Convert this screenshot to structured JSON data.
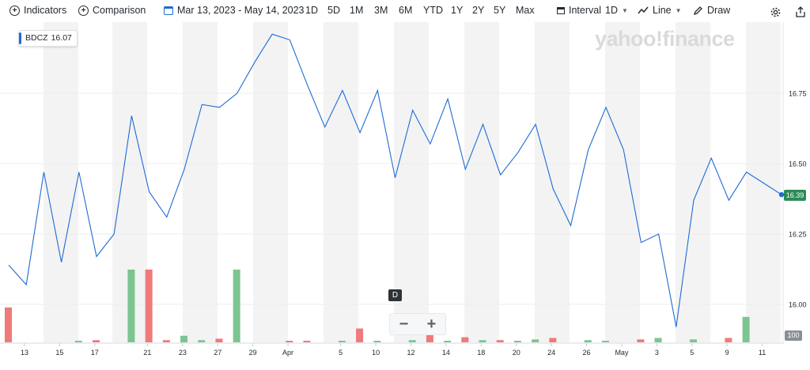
{
  "toolbar": {
    "indicators": "Indicators",
    "comparison": "Comparison",
    "date_range": "Mar 13, 2023 - May 14, 2023",
    "ranges": [
      "1D",
      "5D",
      "1M",
      "3M",
      "6M",
      "YTD",
      "1Y",
      "2Y",
      "5Y",
      "Max"
    ],
    "interval_label": "Interval",
    "interval_value": "1D",
    "line_label": "Line",
    "draw_label": "Draw"
  },
  "ticker": {
    "symbol": "BDCZ",
    "value": "16.07"
  },
  "watermark": "yahoo!finance",
  "current_price_tag": "16.39",
  "volume_tag": "100",
  "period_badge": "D",
  "zoom": {
    "minus": "−",
    "plus": "+"
  },
  "colors": {
    "line": "#1e6bd6",
    "up_volume": "#7cc490",
    "down_volume": "#ef7a7a",
    "band": "#f3f3f3",
    "price_tag": "#2e8b57"
  },
  "chart_data": {
    "type": "line",
    "x_tick_labels": [
      "13",
      "15",
      "17",
      "21",
      "23",
      "27",
      "29",
      "Apr",
      "5",
      "10",
      "12",
      "14",
      "18",
      "20",
      "24",
      "26",
      "May",
      "3",
      "5",
      "9",
      "11"
    ],
    "y_ticks": [
      16.0,
      16.25,
      16.5,
      16.75
    ],
    "ylim": [
      15.92,
      17.0
    ],
    "series": [
      {
        "values": [
          16.14,
          16.07,
          16.47,
          16.15,
          16.47,
          16.17,
          16.25,
          16.67,
          16.4,
          16.31,
          16.48,
          16.71,
          16.7,
          16.75,
          16.86,
          16.96,
          16.94,
          16.78,
          16.63,
          16.76,
          16.61,
          16.76,
          16.45,
          16.69,
          16.57,
          16.73,
          16.48,
          16.64,
          16.46,
          16.54,
          16.64,
          16.41,
          16.28,
          16.55,
          16.7,
          16.55,
          16.22,
          16.25,
          15.92,
          16.37,
          16.52,
          16.37,
          16.47,
          16.43,
          16.39
        ]
      }
    ],
    "volume": {
      "values": [
        0.48,
        0,
        0,
        0,
        0.02,
        0.03,
        0,
        1.0,
        1.0,
        0.03,
        0.09,
        0.03,
        0.05,
        1.0,
        0,
        0,
        0.02,
        0.02,
        0,
        0.02,
        0.19,
        0.02,
        0,
        0.03,
        0.14,
        0.02,
        0.07,
        0.03,
        0.03,
        0.02,
        0.04,
        0.06,
        0,
        0.03,
        0.02,
        0,
        0.04,
        0.06,
        0,
        0.04,
        0,
        0.06,
        0.35,
        0,
        0
      ],
      "direction": [
        "down",
        "down",
        "down",
        "down",
        "up",
        "down",
        "down",
        "up",
        "down",
        "down",
        "up",
        "up",
        "down",
        "up",
        "up",
        "up",
        "down",
        "down",
        "up",
        "up",
        "down",
        "up",
        "up",
        "up",
        "down",
        "up",
        "down",
        "up",
        "down",
        "up",
        "up",
        "down",
        "down",
        "up",
        "up",
        "up",
        "down",
        "up",
        "up",
        "up",
        "up",
        "down",
        "up",
        "up",
        "up"
      ]
    }
  }
}
